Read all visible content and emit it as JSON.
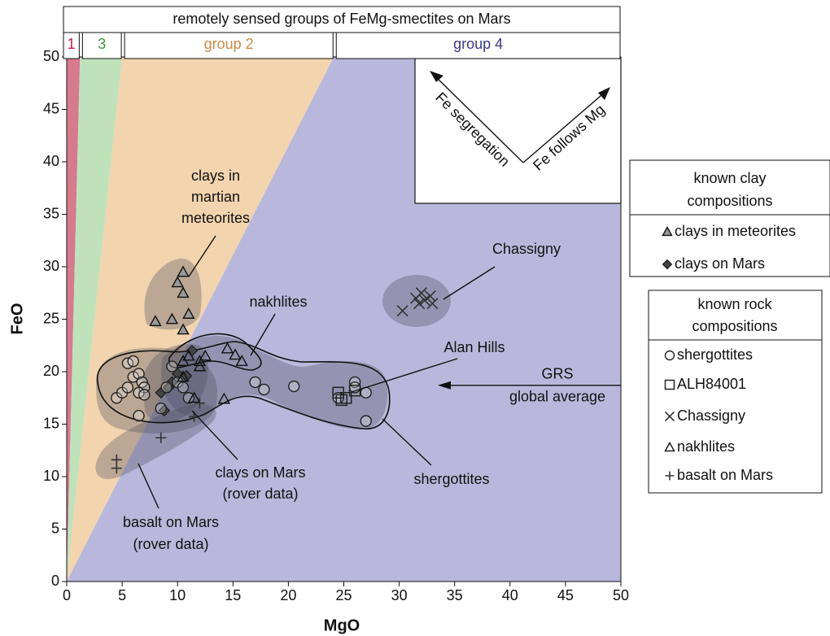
{
  "chart_data": {
    "type": "scatter",
    "header_title": "remotely sensed groups of FeMg-smectites on Mars",
    "x_label": "MgO",
    "y_label": "FeO",
    "xlim": [
      0,
      50
    ],
    "ylim": [
      0,
      50
    ],
    "xticks": [
      0,
      5,
      10,
      15,
      20,
      25,
      30,
      35,
      40,
      45,
      50
    ],
    "yticks": [
      0,
      5,
      10,
      15,
      20,
      25,
      30,
      35,
      40,
      45,
      50
    ],
    "regions": [
      {
        "name": "1",
        "color": "#d67a8e",
        "label_color": "#c41e4a",
        "bounds": [
          0,
          1.2
        ]
      },
      {
        "name": "3",
        "color": "#bfe2bb",
        "label_color": "#3a9a3a",
        "bounds": [
          1.2,
          5
        ]
      },
      {
        "name": "group 2",
        "color": "#f2d4ae",
        "label_color": "#d08a48",
        "bounds": [
          5,
          24.1
        ]
      },
      {
        "name": "group 4",
        "color": "#b9b8dc",
        "label_color": "#3b3a88",
        "bounds": [
          24.1,
          50
        ]
      }
    ],
    "series_groups": [
      {
        "title": [
          "known clay",
          "compositions"
        ],
        "series": [
          {
            "name": "clays in meteorites",
            "marker": "triangle-filled",
            "color": "#999999",
            "x": [
              10.5,
              10,
              10.5,
              11,
              9.5,
              8,
              10.5
            ],
            "y": [
              29.5,
              28.5,
              27.5,
              25.5,
              25,
              24.8,
              24
            ]
          },
          {
            "name": "clays on Mars",
            "marker": "diamond",
            "color": "#444444",
            "x": [
              8.8,
              9.5,
              10,
              10.8,
              11.3,
              9.2,
              8.5
            ],
            "y": [
              16.3,
              19,
              19.8,
              19.6,
              22,
              18.5,
              18
            ]
          }
        ]
      },
      {
        "title": [
          "known rock",
          "compositions"
        ],
        "series": [
          {
            "name": "shergottites",
            "marker": "circle",
            "color": "#222222",
            "x": [
              4.5,
              5,
              5.5,
              5.5,
              6,
              6,
              6.5,
              6.8,
              7,
              6.5,
              7,
              6.5,
              9.5,
              10,
              10.5,
              9,
              11,
              8.5,
              17,
              17.8,
              20.5,
              26,
              27,
              27,
              24.5,
              26
            ],
            "y": [
              17.5,
              18,
              18.5,
              20.8,
              21,
              19.5,
              19.8,
              19,
              18.5,
              18,
              17.8,
              15.8,
              20.5,
              19,
              18.5,
              18.5,
              17.5,
              16.5,
              19,
              18.3,
              18.6,
              19,
              18,
              15.3,
              17.5,
              18.5
            ]
          },
          {
            "name": "ALH84001",
            "marker": "square",
            "color": "#222222",
            "x": [
              24.5,
              24.8,
              25.2,
              26
            ],
            "y": [
              18,
              17.3,
              17.5,
              18.2
            ]
          },
          {
            "name": "Chassigny",
            "marker": "cross",
            "color": "#333333",
            "x": [
              30.3,
              31.5,
              32,
              32.3,
              32.8,
              33,
              31.8
            ],
            "y": [
              25.8,
              27,
              27.5,
              26.8,
              27.2,
              26.5,
              26.5
            ]
          },
          {
            "name": "nakhlites",
            "marker": "triangle",
            "color": "#222222",
            "x": [
              11,
              12,
              12.5,
              14.5,
              15.2,
              15.8,
              11.5,
              14.2,
              12,
              10.5,
              10.5
            ],
            "y": [
              21.5,
              21,
              21.5,
              22.2,
              21.6,
              21,
              17.5,
              17.4,
              20.5,
              21,
              19.5
            ]
          },
          {
            "name": "basalt on Mars",
            "marker": "plus",
            "color": "#333333",
            "x": [
              4.5,
              4.5,
              8.5,
              11.5,
              12
            ],
            "y": [
              11.6,
              10.8,
              13.7,
              15.7,
              17
            ]
          }
        ]
      }
    ],
    "annotations": [
      {
        "lines": [
          "clays in",
          "martian",
          "meteorites"
        ]
      },
      {
        "lines": [
          "nakhlites"
        ]
      },
      {
        "lines": [
          "Chassigny"
        ]
      },
      {
        "lines": [
          "Alan Hills"
        ]
      },
      {
        "lines": [
          "shergottites"
        ]
      },
      {
        "lines": [
          "clays on Mars",
          "(rover data)"
        ]
      },
      {
        "lines": [
          "basalt on Mars",
          "(rover data)"
        ]
      }
    ],
    "grs": {
      "lines": [
        "GRS",
        "global average"
      ],
      "y": 18.7
    },
    "inset": {
      "left": "Fe segregation",
      "right": "Fe follows Mg"
    }
  }
}
